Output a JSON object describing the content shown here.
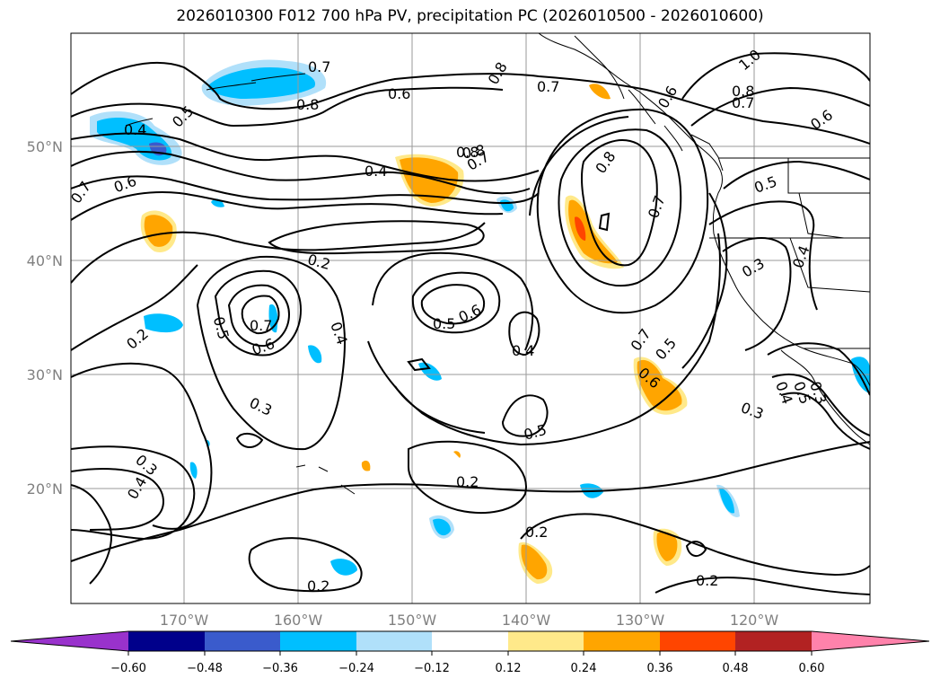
{
  "title": "2026010300 F012 700 hPa PV, precipitation PC (2026010500 - 2026010600)",
  "map": {
    "lat_labels": [
      "50°N",
      "40°N",
      "30°N",
      "20°N"
    ],
    "lon_labels": [
      "170°W",
      "160°W",
      "150°W",
      "140°W",
      "130°W",
      "120°W"
    ],
    "contour_labels": [
      "0.7",
      "0.8",
      "0.6",
      "0.7",
      "0.8",
      "0.6",
      "0.5",
      "0.4",
      "0.8",
      "0.7",
      "1.0",
      "0.8",
      "0.7",
      "0.6",
      "0.7",
      "0.6",
      "0.4",
      "0.8",
      "0.7",
      "0.8",
      "0.7",
      "0.5",
      "0.2",
      "0.3",
      "0.4",
      "0.5",
      "0.7",
      "0.6",
      "0.4",
      "0.5",
      "0.6",
      "0.4",
      "0.5",
      "0.2",
      "0.3",
      "0.6",
      "0.5",
      "0.3",
      "0.4",
      "0.5",
      "0.3",
      "0.3",
      "0.4",
      "0.2",
      "0.2",
      "0.2",
      "0.2"
    ]
  },
  "colorbar": {
    "ticks": [
      "−0.60",
      "−0.48",
      "−0.36",
      "−0.24",
      "−0.12",
      "0.12",
      "0.24",
      "0.36",
      "0.48",
      "0.60"
    ],
    "colors": [
      "#9932cc",
      "#00008b",
      "#3a5bcc",
      "#00bfff",
      "#b0e0fa",
      "#ffffff",
      "#ffe98a",
      "#ffa500",
      "#ff4500",
      "#b22222",
      "#ff82ab"
    ]
  }
}
